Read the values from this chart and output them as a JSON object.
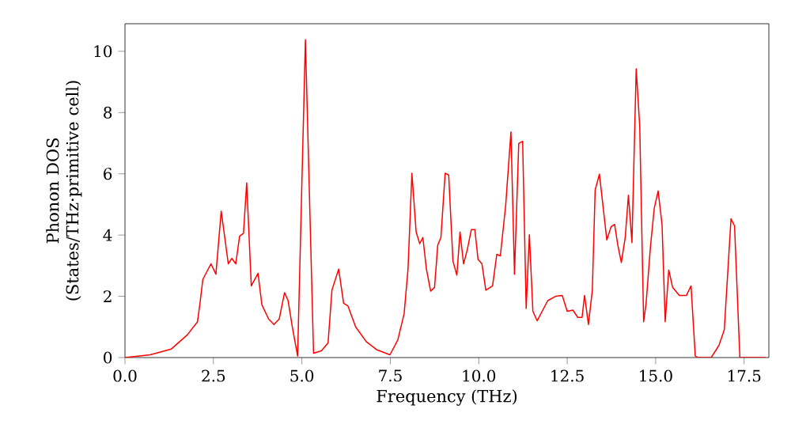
{
  "chart_data": {
    "type": "line",
    "xlabel": "Frequency (THz)",
    "ylabel": "Phonon DOS (States/THz·primitive cell)",
    "x": [
      0,
      0.71,
      1.31,
      1.76,
      2.05,
      2.12,
      2.2,
      2.43,
      2.57,
      2.72,
      2.92,
      3.02,
      3.13,
      3.24,
      3.35,
      3.44,
      3.57,
      3.76,
      3.87,
      4.06,
      4.21,
      4.36,
      4.51,
      4.61,
      4.73,
      4.88,
      5.1,
      5.33,
      5.55,
      5.74,
      5.85,
      6.04,
      6.18,
      6.3,
      6.52,
      6.82,
      7.11,
      7.49,
      7.71,
      7.89,
      8.0,
      8.11,
      8.23,
      8.33,
      8.42,
      8.52,
      8.64,
      8.75,
      8.84,
      8.93,
      9.05,
      9.15,
      9.27,
      9.38,
      9.47,
      9.57,
      9.67,
      9.79,
      9.89,
      9.98,
      10.09,
      10.2,
      10.39,
      10.51,
      10.61,
      10.76,
      10.91,
      11.01,
      11.13,
      11.24,
      11.34,
      11.43,
      11.53,
      11.65,
      11.95,
      12.17,
      12.36,
      12.5,
      12.66,
      12.8,
      12.92,
      12.99,
      13.1,
      13.21,
      13.29,
      13.41,
      13.62,
      13.74,
      13.84,
      13.93,
      14.03,
      14.14,
      14.23,
      14.33,
      14.45,
      14.55,
      14.66,
      14.73,
      14.85,
      14.96,
      15.07,
      15.18,
      15.27,
      15.37,
      15.48,
      15.67,
      15.87,
      16.0,
      16.12,
      16.19,
      16.57,
      16.79,
      16.94,
      17.13,
      17.23,
      17.38,
      18.12
    ],
    "series": [
      {
        "color": "#ff0000",
        "values": [
          0,
          0.09,
          0.28,
          0.74,
          1.17,
          1.77,
          2.55,
          3.06,
          2.72,
          4.78,
          3.06,
          3.24,
          3.06,
          3.96,
          4.06,
          5.7,
          2.34,
          2.75,
          1.72,
          1.26,
          1.08,
          1.26,
          2.12,
          1.86,
          1.0,
          0.05,
          10.38,
          0.14,
          0.22,
          0.48,
          2.2,
          2.89,
          1.77,
          1.69,
          1.0,
          0.52,
          0.26,
          0.09,
          0.57,
          1.43,
          2.89,
          6.02,
          4.1,
          3.72,
          3.92,
          2.89,
          2.17,
          2.29,
          3.67,
          3.92,
          6.02,
          5.96,
          3.15,
          2.69,
          4.1,
          3.06,
          3.49,
          4.18,
          4.18,
          3.2,
          3.06,
          2.2,
          2.34,
          3.37,
          3.32,
          4.96,
          7.37,
          2.72,
          6.99,
          7.06,
          1.6,
          4.01,
          1.51,
          1.2,
          1.86,
          2.0,
          2.03,
          1.51,
          1.55,
          1.31,
          1.31,
          2.03,
          1.08,
          2.2,
          5.47,
          5.99,
          3.84,
          4.27,
          4.35,
          3.67,
          3.1,
          3.92,
          5.3,
          3.75,
          9.43,
          7.54,
          1.17,
          1.77,
          3.58,
          4.87,
          5.44,
          4.35,
          1.17,
          2.86,
          2.29,
          2.03,
          2.03,
          2.34,
          0.05,
          0,
          0,
          0.4,
          0.91,
          4.53,
          4.3,
          0,
          0
        ]
      }
    ],
    "xlim": [
      0,
      18.2
    ],
    "ylim": [
      0,
      10.9
    ],
    "xticks": [
      {
        "value": 0,
        "label": "0.0"
      },
      {
        "value": 2.5,
        "label": "2.5"
      },
      {
        "value": 5,
        "label": "5.0"
      },
      {
        "value": 7.5,
        "label": "7.5"
      },
      {
        "value": 10,
        "label": "10.0"
      },
      {
        "value": 12.5,
        "label": "12.5"
      },
      {
        "value": 15,
        "label": "15.0"
      },
      {
        "value": 17.5,
        "label": "17.5"
      }
    ],
    "yticks": [
      0,
      2,
      4,
      6,
      8,
      10
    ],
    "grid": false,
    "marker": "none",
    "line_style": "solid"
  }
}
